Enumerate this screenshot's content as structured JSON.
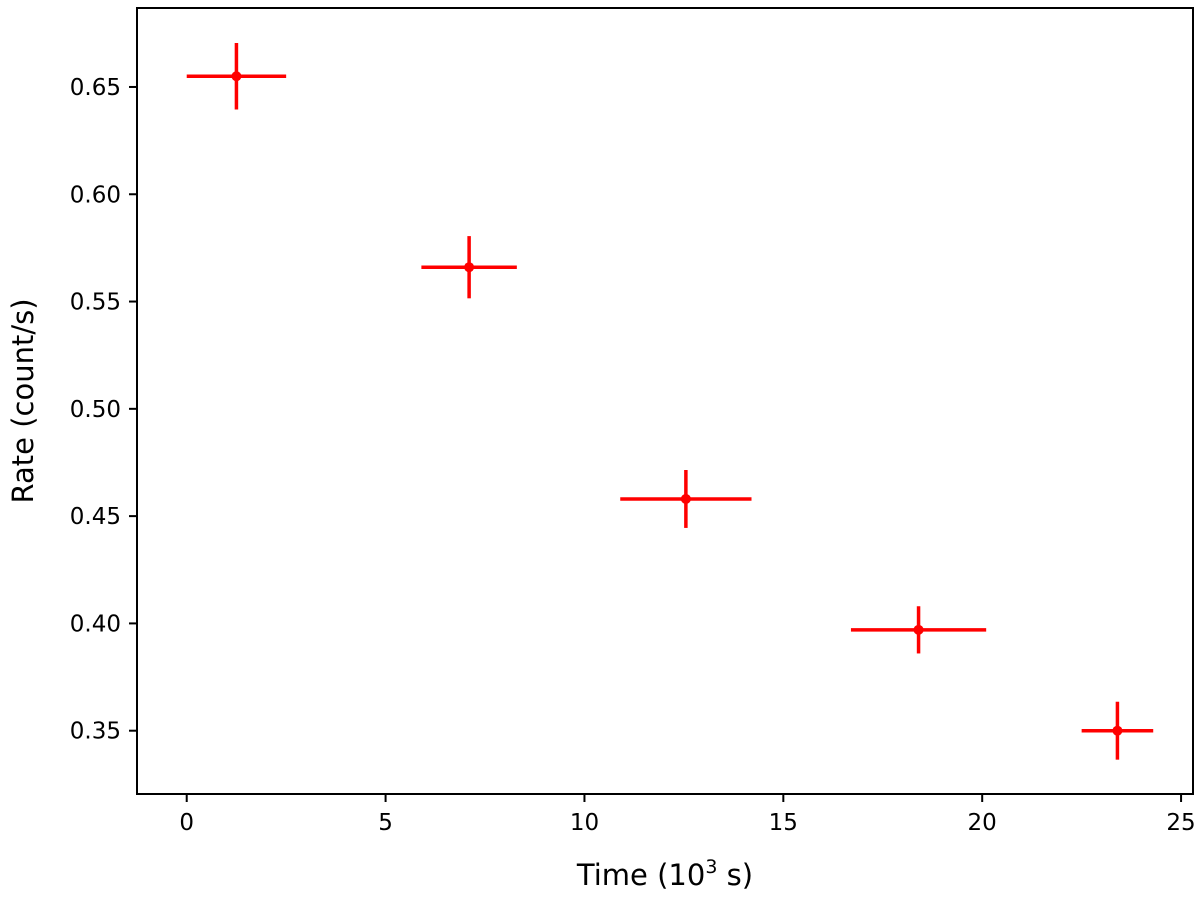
{
  "chart_data": {
    "type": "scatter",
    "title": "",
    "xlabel": {
      "pre": "Time (10",
      "sup": "3",
      "post": " s)"
    },
    "ylabel": "Rate (count/s)",
    "xlim": [
      -1.25,
      25.3
    ],
    "ylim": [
      0.3205,
      0.6868
    ],
    "x_ticks": [
      {
        "value": 0,
        "label": "0"
      },
      {
        "value": 5,
        "label": "5"
      },
      {
        "value": 10,
        "label": "10"
      },
      {
        "value": 15,
        "label": "15"
      },
      {
        "value": 20,
        "label": "20"
      },
      {
        "value": 25,
        "label": "25"
      }
    ],
    "y_ticks": [
      {
        "value": 0.35,
        "label": "0.35"
      },
      {
        "value": 0.4,
        "label": "0.40"
      },
      {
        "value": 0.45,
        "label": "0.45"
      },
      {
        "value": 0.5,
        "label": "0.50"
      },
      {
        "value": 0.55,
        "label": "0.55"
      },
      {
        "value": 0.6,
        "label": "0.60"
      },
      {
        "value": 0.65,
        "label": "0.65"
      }
    ],
    "grid": false,
    "legend": "none",
    "series": [
      {
        "color": "#ff0000",
        "points": [
          {
            "x": 1.25,
            "y": 0.655,
            "xerr": 1.25,
            "yerr": 0.0155
          },
          {
            "x": 7.1,
            "y": 0.566,
            "xerr": 1.2,
            "yerr": 0.0145
          },
          {
            "x": 12.55,
            "y": 0.458,
            "xerr": 1.65,
            "yerr": 0.0135
          },
          {
            "x": 18.4,
            "y": 0.397,
            "xerr": 1.7,
            "yerr": 0.011
          },
          {
            "x": 23.4,
            "y": 0.35,
            "xerr": 0.9,
            "yerr": 0.0135
          }
        ]
      }
    ]
  }
}
